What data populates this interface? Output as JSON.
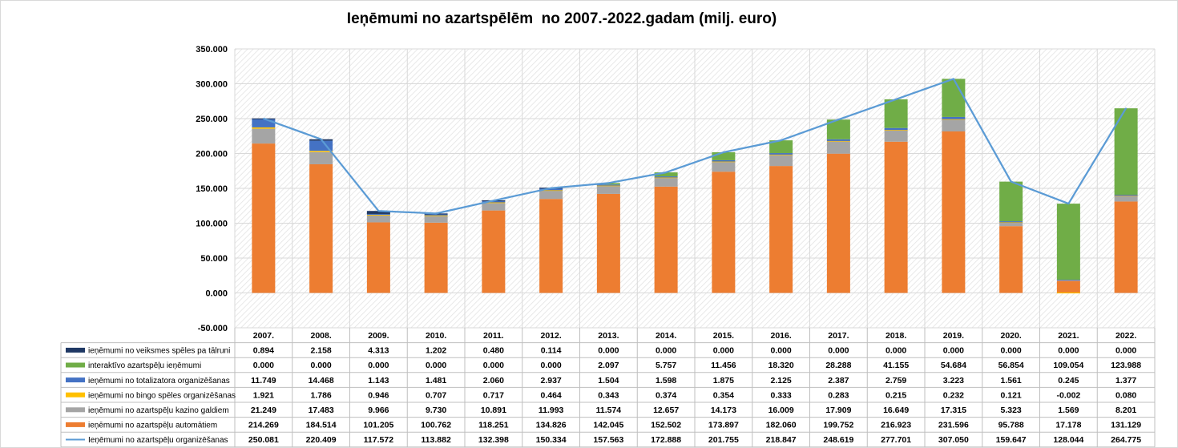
{
  "chart_data": {
    "type": "bar",
    "stacked": true,
    "title": "Ieņēmumi no azartspēlēm  no 2007.-2022.gadam (milj. euro)",
    "categories": [
      "2007.",
      "2008.",
      "2009.",
      "2010.",
      "2011.",
      "2012.",
      "2013.",
      "2014.",
      "2015.",
      "2016.",
      "2017.",
      "2018.",
      "2019.",
      "2020.",
      "2021.",
      "2022."
    ],
    "ylim": [
      -50,
      350
    ],
    "yticks": [
      350,
      300,
      250,
      200,
      150,
      100,
      50,
      0,
      -50
    ],
    "ytick_labels": [
      "350.000",
      "300.000",
      "250.000",
      "200.000",
      "150.000",
      "100.000",
      "50.000",
      "0.000",
      "-50.000"
    ],
    "grid": true,
    "legend": "data-table",
    "series": [
      {
        "name": "ieņēmumi no veiksmes spēles pa tālruni",
        "kind": "bar",
        "color": "#1f3864",
        "values": [
          0.894,
          2.158,
          4.313,
          1.202,
          0.48,
          0.114,
          0.0,
          0.0,
          0.0,
          0.0,
          0.0,
          0.0,
          0.0,
          0.0,
          0.0,
          0.0
        ],
        "labels": [
          "0.894",
          "2.158",
          "4.313",
          "1.202",
          "0.480",
          "0.114",
          "0.000",
          "0.000",
          "0.000",
          "0.000",
          "0.000",
          "0.000",
          "0.000",
          "0.000",
          "0.000",
          "0.000"
        ]
      },
      {
        "name": "interaktīvo azartspēļu  ieņēmumi",
        "kind": "bar",
        "color": "#70ad47",
        "values": [
          0.0,
          0.0,
          0.0,
          0.0,
          0.0,
          0.0,
          2.097,
          5.757,
          11.456,
          18.32,
          28.288,
          41.155,
          54.684,
          56.854,
          109.054,
          123.988
        ],
        "labels": [
          "0.000",
          "0.000",
          "0.000",
          "0.000",
          "0.000",
          "0.000",
          "2.097",
          "5.757",
          "11.456",
          "18.320",
          "28.288",
          "41.155",
          "54.684",
          "56.854",
          "109.054",
          "123.988"
        ]
      },
      {
        "name": "ieņēmumi no totalizatora organizēšanas",
        "kind": "bar",
        "color": "#4472c4",
        "values": [
          11.749,
          14.468,
          1.143,
          1.481,
          2.06,
          2.937,
          1.504,
          1.598,
          1.875,
          2.125,
          2.387,
          2.759,
          3.223,
          1.561,
          0.245,
          1.377
        ],
        "labels": [
          "11.749",
          "14.468",
          "1.143",
          "1.481",
          "2.060",
          "2.937",
          "1.504",
          "1.598",
          "1.875",
          "2.125",
          "2.387",
          "2.759",
          "3.223",
          "1.561",
          "0.245",
          "1.377"
        ]
      },
      {
        "name": "ieņēmumi no bingo spēles organizēšanas",
        "kind": "bar",
        "color": "#ffc000",
        "values": [
          1.921,
          1.786,
          0.946,
          0.707,
          0.717,
          0.464,
          0.343,
          0.374,
          0.354,
          0.333,
          0.283,
          0.215,
          0.232,
          0.121,
          -0.002,
          0.08
        ],
        "labels": [
          "1.921",
          "1.786",
          "0.946",
          "0.707",
          "0.717",
          "0.464",
          "0.343",
          "0.374",
          "0.354",
          "0.333",
          "0.283",
          "0.215",
          "0.232",
          "0.121",
          "-0.002",
          "0.080"
        ]
      },
      {
        "name": "ieņēmumi no azartspēļu kazino galdiem",
        "kind": "bar",
        "color": "#a5a5a5",
        "values": [
          21.249,
          17.483,
          9.966,
          9.73,
          10.891,
          11.993,
          11.574,
          12.657,
          14.173,
          16.009,
          17.909,
          16.649,
          17.315,
          5.323,
          1.569,
          8.201
        ],
        "labels": [
          "21.249",
          "17.483",
          "9.966",
          "9.730",
          "10.891",
          "11.993",
          "11.574",
          "12.657",
          "14.173",
          "16.009",
          "17.909",
          "16.649",
          "17.315",
          "5.323",
          "1.569",
          "8.201"
        ]
      },
      {
        "name": "ieņēmumi no azartspēļu automātiem",
        "kind": "bar",
        "color": "#ed7d31",
        "values": [
          214.269,
          184.514,
          101.205,
          100.762,
          118.251,
          134.826,
          142.045,
          152.502,
          173.897,
          182.06,
          199.752,
          216.923,
          231.596,
          95.788,
          17.178,
          131.129
        ],
        "labels": [
          "214.269",
          "184.514",
          "101.205",
          "100.762",
          "118.251",
          "134.826",
          "142.045",
          "152.502",
          "173.897",
          "182.060",
          "199.752",
          "216.923",
          "231.596",
          "95.788",
          "17.178",
          "131.129"
        ]
      },
      {
        "name": "Ieņēmumi no azartspēļu organizēšanas",
        "kind": "line",
        "color": "#5b9bd5",
        "values": [
          250.081,
          220.409,
          117.572,
          113.882,
          132.398,
          150.334,
          157.563,
          172.888,
          201.755,
          218.847,
          248.619,
          277.701,
          307.05,
          159.647,
          128.044,
          264.775
        ],
        "labels": [
          "250.081",
          "220.409",
          "117.572",
          "113.882",
          "132.398",
          "150.334",
          "157.563",
          "172.888",
          "201.755",
          "218.847",
          "248.619",
          "277.701",
          "307.050",
          "159.647",
          "128.044",
          "264.775"
        ]
      }
    ]
  }
}
